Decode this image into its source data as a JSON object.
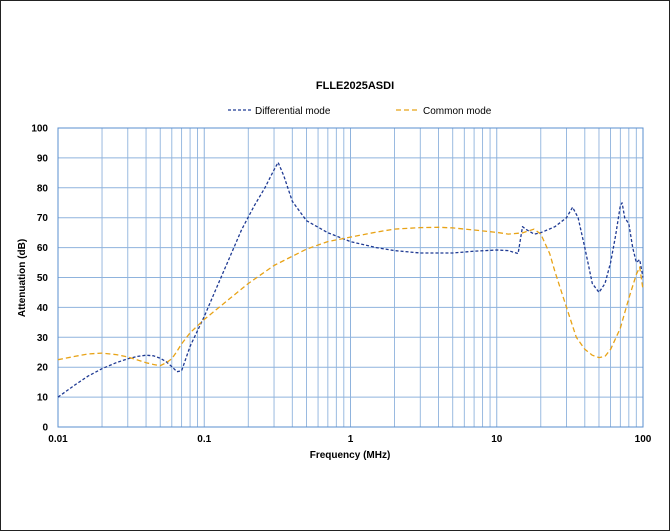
{
  "chart_data": {
    "type": "line",
    "title": "FLLE2025ASDI",
    "xlabel": "Frequency (MHz)",
    "ylabel": "Attenuation (dB)",
    "x_scale": "log",
    "xlim": [
      0.01,
      100
    ],
    "ylim": [
      0,
      100
    ],
    "x_ticks": [
      {
        "value": 0.01,
        "label": "0.01"
      },
      {
        "value": 0.1,
        "label": "0.1"
      },
      {
        "value": 1,
        "label": "1"
      },
      {
        "value": 10,
        "label": "10"
      },
      {
        "value": 100,
        "label": "100"
      }
    ],
    "y_ticks": [
      {
        "value": 0,
        "label": "0"
      },
      {
        "value": 10,
        "label": "10"
      },
      {
        "value": 20,
        "label": "20"
      },
      {
        "value": 30,
        "label": "30"
      },
      {
        "value": 40,
        "label": "40"
      },
      {
        "value": 50,
        "label": "50"
      },
      {
        "value": 60,
        "label": "60"
      },
      {
        "value": 70,
        "label": "70"
      },
      {
        "value": 80,
        "label": "80"
      },
      {
        "value": 90,
        "label": "90"
      },
      {
        "value": 100,
        "label": "100"
      }
    ],
    "grid": true,
    "legend_position": "top",
    "series": [
      {
        "name": "Differential mode",
        "color": "#1f3a93",
        "x": [
          0.01,
          0.013,
          0.016,
          0.02,
          0.025,
          0.03,
          0.035,
          0.04,
          0.045,
          0.05,
          0.055,
          0.06,
          0.065,
          0.07,
          0.08,
          0.1,
          0.12,
          0.15,
          0.18,
          0.22,
          0.26,
          0.3,
          0.32,
          0.35,
          0.4,
          0.5,
          0.7,
          1,
          1.5,
          2,
          3,
          5,
          7,
          10,
          12,
          14,
          15,
          16,
          18,
          20,
          25,
          30,
          33,
          36,
          40,
          45,
          50,
          55,
          60,
          65,
          70,
          72,
          75,
          80,
          85,
          90,
          95,
          100
        ],
        "y": [
          10,
          14,
          17,
          19.5,
          21.5,
          22.8,
          23.6,
          24,
          23.8,
          23,
          21.8,
          20.2,
          18.5,
          18.8,
          27,
          37,
          46,
          57,
          66,
          74,
          80,
          86,
          88.5,
          84,
          75.5,
          69,
          65,
          62,
          60,
          59,
          58.2,
          58.2,
          58.8,
          59.2,
          59,
          58,
          67,
          66,
          64.5,
          65,
          67,
          70,
          73.5,
          70,
          60,
          48,
          45,
          48,
          55,
          64,
          74,
          75,
          70,
          68,
          60,
          55,
          56,
          50
        ]
      },
      {
        "name": "Common mode",
        "color": "#e8a317",
        "x": [
          0.01,
          0.013,
          0.016,
          0.02,
          0.025,
          0.03,
          0.035,
          0.04,
          0.045,
          0.05,
          0.055,
          0.06,
          0.065,
          0.07,
          0.08,
          0.1,
          0.15,
          0.2,
          0.3,
          0.5,
          0.7,
          1,
          1.5,
          2,
          3,
          4,
          5,
          7,
          10,
          12,
          15,
          18,
          20,
          23,
          25,
          30,
          35,
          40,
          45,
          50,
          55,
          60,
          70,
          80,
          90,
          95,
          100
        ],
        "y": [
          22.5,
          23.6,
          24.4,
          24.7,
          24.2,
          23.4,
          22.4,
          21.5,
          20.9,
          20.5,
          21.5,
          22.8,
          25.3,
          27.8,
          31.5,
          36,
          43,
          48,
          54,
          59.5,
          62,
          63.5,
          65.2,
          66.2,
          66.7,
          66.8,
          66.6,
          65.9,
          65.1,
          64.5,
          64.9,
          66.2,
          64.5,
          58,
          52,
          40,
          30,
          26,
          24,
          23.2,
          23.6,
          26,
          33,
          43,
          51,
          53.5,
          46
        ]
      }
    ]
  }
}
